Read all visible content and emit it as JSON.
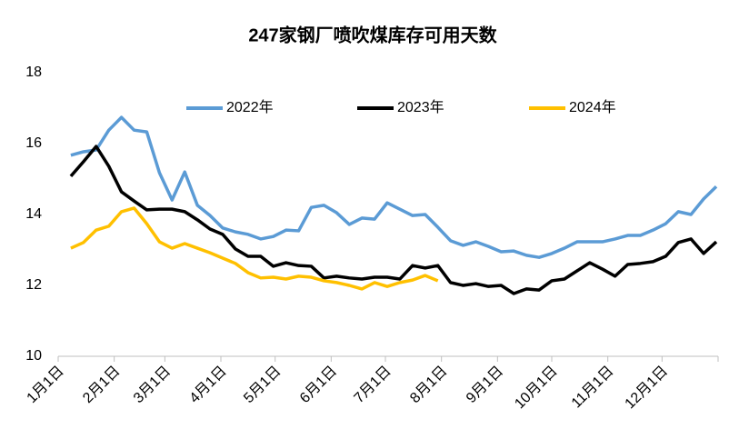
{
  "chart_data": {
    "type": "line",
    "title": "247家钢厂喷吹煤库存可用天数",
    "x": [
      7,
      14,
      21,
      28,
      35,
      42,
      49,
      56,
      63,
      70,
      77,
      84,
      91,
      98,
      105,
      112,
      119,
      126,
      133,
      140,
      147,
      154,
      161,
      168,
      175,
      182,
      189,
      196,
      203,
      210,
      217,
      224,
      231,
      238,
      245,
      252,
      259,
      266,
      273,
      280,
      287,
      294,
      301,
      308,
      315,
      322,
      329,
      336,
      343,
      350,
      357,
      364
    ],
    "xlim": [
      0,
      365
    ],
    "xticks": [
      {
        "value": 0,
        "label": "1月1日"
      },
      {
        "value": 31,
        "label": "2月1日"
      },
      {
        "value": 59,
        "label": "3月1日"
      },
      {
        "value": 90,
        "label": "4月1日"
      },
      {
        "value": 120,
        "label": "5月1日"
      },
      {
        "value": 151,
        "label": "6月1日"
      },
      {
        "value": 181,
        "label": "7月1日"
      },
      {
        "value": 212,
        "label": "8月1日"
      },
      {
        "value": 243,
        "label": "9月1日"
      },
      {
        "value": 273,
        "label": "10月1日"
      },
      {
        "value": 304,
        "label": "11月1日"
      },
      {
        "value": 334,
        "label": "12月1日"
      }
    ],
    "ylim": [
      10,
      18
    ],
    "yticks": [
      10,
      12,
      14,
      16,
      18
    ],
    "legend": "top",
    "series": [
      {
        "name": "2022年",
        "color": "#5b9bd5",
        "values": [
          15.67,
          15.77,
          15.82,
          16.38,
          16.74,
          16.38,
          16.33,
          15.18,
          14.41,
          15.2,
          14.26,
          13.97,
          13.62,
          13.51,
          13.44,
          13.31,
          13.38,
          13.56,
          13.54,
          14.2,
          14.26,
          14.05,
          13.72,
          13.9,
          13.87,
          14.33,
          14.15,
          13.97,
          14.0,
          13.64,
          13.26,
          13.13,
          13.23,
          13.1,
          12.95,
          12.97,
          12.85,
          12.79,
          12.9,
          13.05,
          13.23,
          13.23,
          13.23,
          13.31,
          13.41,
          13.41,
          13.56,
          13.74,
          14.08,
          14.0,
          14.44,
          14.79
        ]
      },
      {
        "name": "2023年",
        "color": "#000000",
        "values": [
          15.08,
          15.49,
          15.92,
          15.36,
          14.64,
          14.38,
          14.13,
          14.15,
          14.15,
          14.08,
          13.85,
          13.59,
          13.44,
          13.03,
          12.82,
          12.82,
          12.54,
          12.64,
          12.56,
          12.54,
          12.21,
          12.26,
          12.21,
          12.18,
          12.23,
          12.23,
          12.18,
          12.56,
          12.49,
          12.56,
          12.08,
          12.0,
          12.05,
          11.97,
          12.0,
          11.77,
          11.9,
          11.87,
          12.13,
          12.18,
          12.41,
          12.64,
          12.46,
          12.26,
          12.59,
          12.62,
          12.67,
          12.82,
          13.21,
          13.31,
          12.9,
          13.23
        ]
      },
      {
        "name": "2024年",
        "color": "#ffc000",
        "values": [
          13.05,
          13.21,
          13.56,
          13.67,
          14.08,
          14.18,
          13.74,
          13.23,
          13.05,
          13.18,
          13.05,
          12.92,
          12.77,
          12.62,
          12.36,
          12.21,
          12.23,
          12.18,
          12.26,
          12.23,
          12.13,
          12.08,
          12.0,
          11.9,
          12.08,
          11.97,
          12.08,
          12.15,
          12.28,
          12.13,
          null,
          null,
          null,
          null,
          null,
          null,
          null,
          null,
          null,
          null,
          null,
          null,
          null,
          null,
          null,
          null,
          null,
          null,
          null,
          null,
          null,
          null
        ]
      }
    ]
  }
}
